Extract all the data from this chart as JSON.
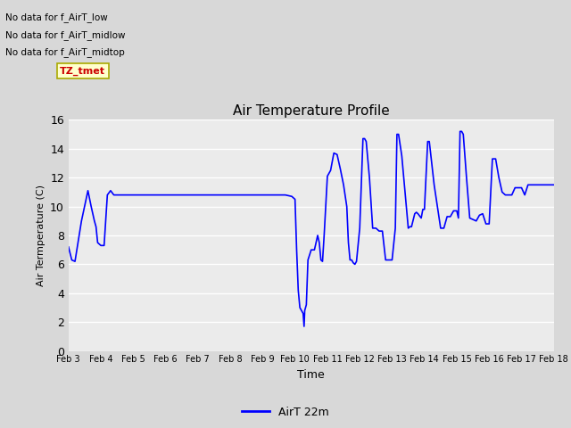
{
  "title": "Air Temperature Profile",
  "ylabel": "Air Termperature (C)",
  "xlabel": "Time",
  "ylim": [
    0,
    16
  ],
  "yticks": [
    0,
    2,
    4,
    6,
    8,
    10,
    12,
    14,
    16
  ],
  "line_color": "blue",
  "line_label": "AirT 22m",
  "fig_bg_color": "#d8d8d8",
  "plot_bg_color": "#ebebeb",
  "no_data_texts": [
    "No data for f_AirT_low",
    "No data for f_AirT_midlow",
    "No data for f_AirT_midtop"
  ],
  "tz_label": "TZ_tmet",
  "tz_color": "#cc0000",
  "tz_bg": "#ffffcc",
  "tz_edge": "#aaaa00",
  "x_labels": [
    "Feb 3",
    "Feb 4",
    "Feb 5",
    "Feb 6",
    "Feb 7",
    "Feb 8",
    "Feb 9",
    "Feb 10",
    "Feb 11",
    "Feb 12",
    "Feb 13",
    "Feb 14",
    "Feb 15",
    "Feb 16",
    "Feb 17",
    "Feb 18"
  ],
  "x_values": [
    3,
    4,
    5,
    6,
    7,
    8,
    9,
    10,
    11,
    12,
    13,
    14,
    15,
    16,
    17,
    18
  ],
  "temperature_data": [
    [
      3.0,
      7.2
    ],
    [
      3.1,
      6.3
    ],
    [
      3.2,
      6.2
    ],
    [
      3.4,
      9.0
    ],
    [
      3.6,
      11.1
    ],
    [
      3.7,
      10.0
    ],
    [
      3.8,
      9.0
    ],
    [
      3.85,
      8.6
    ],
    [
      3.9,
      7.5
    ],
    [
      4.0,
      7.3
    ],
    [
      4.1,
      7.3
    ],
    [
      4.2,
      10.8
    ],
    [
      4.3,
      11.1
    ],
    [
      4.4,
      10.8
    ],
    [
      4.5,
      10.8
    ],
    [
      5.0,
      10.8
    ],
    [
      6.0,
      10.8
    ],
    [
      7.0,
      10.8
    ],
    [
      8.0,
      10.8
    ],
    [
      8.5,
      10.8
    ],
    [
      9.0,
      10.8
    ],
    [
      9.5,
      10.8
    ],
    [
      9.7,
      10.8
    ],
    [
      9.9,
      10.7
    ],
    [
      10.0,
      10.5
    ],
    [
      10.05,
      7.0
    ],
    [
      10.1,
      4.2
    ],
    [
      10.15,
      3.0
    ],
    [
      10.2,
      2.8
    ],
    [
      10.25,
      2.6
    ],
    [
      10.28,
      1.7
    ],
    [
      10.3,
      2.8
    ],
    [
      10.35,
      3.2
    ],
    [
      10.4,
      6.3
    ],
    [
      10.5,
      7.0
    ],
    [
      10.6,
      7.0
    ],
    [
      10.7,
      8.0
    ],
    [
      10.75,
      7.5
    ],
    [
      10.8,
      6.3
    ],
    [
      10.85,
      6.2
    ],
    [
      10.9,
      8.0
    ],
    [
      11.0,
      12.1
    ],
    [
      11.1,
      12.5
    ],
    [
      11.2,
      13.7
    ],
    [
      11.3,
      13.6
    ],
    [
      11.4,
      12.6
    ],
    [
      11.5,
      11.5
    ],
    [
      11.6,
      10.0
    ],
    [
      11.65,
      7.5
    ],
    [
      11.7,
      6.3
    ],
    [
      11.75,
      6.3
    ],
    [
      11.8,
      6.1
    ],
    [
      11.85,
      6.0
    ],
    [
      11.9,
      6.2
    ],
    [
      12.0,
      8.5
    ],
    [
      12.1,
      14.7
    ],
    [
      12.15,
      14.7
    ],
    [
      12.2,
      14.5
    ],
    [
      12.3,
      12.0
    ],
    [
      12.4,
      8.5
    ],
    [
      12.5,
      8.5
    ],
    [
      12.6,
      8.3
    ],
    [
      12.7,
      8.3
    ],
    [
      12.8,
      6.3
    ],
    [
      12.9,
      6.3
    ],
    [
      13.0,
      6.3
    ],
    [
      13.1,
      8.5
    ],
    [
      13.15,
      15.0
    ],
    [
      13.2,
      15.0
    ],
    [
      13.3,
      13.5
    ],
    [
      13.4,
      11.0
    ],
    [
      13.5,
      8.5
    ],
    [
      13.55,
      8.6
    ],
    [
      13.6,
      8.6
    ],
    [
      13.7,
      9.5
    ],
    [
      13.75,
      9.6
    ],
    [
      13.8,
      9.5
    ],
    [
      13.9,
      9.2
    ],
    [
      13.95,
      9.8
    ],
    [
      14.0,
      9.8
    ],
    [
      14.1,
      14.5
    ],
    [
      14.15,
      14.5
    ],
    [
      14.2,
      13.5
    ],
    [
      14.3,
      11.5
    ],
    [
      14.5,
      8.5
    ],
    [
      14.6,
      8.5
    ],
    [
      14.7,
      9.3
    ],
    [
      14.8,
      9.3
    ],
    [
      14.9,
      9.7
    ],
    [
      15.0,
      9.7
    ],
    [
      15.05,
      9.2
    ],
    [
      15.1,
      15.2
    ],
    [
      15.15,
      15.2
    ],
    [
      15.2,
      15.0
    ],
    [
      15.3,
      12.0
    ],
    [
      15.4,
      9.2
    ],
    [
      15.5,
      9.1
    ],
    [
      15.6,
      9.0
    ],
    [
      15.7,
      9.4
    ],
    [
      15.8,
      9.5
    ],
    [
      15.9,
      8.8
    ],
    [
      15.95,
      8.8
    ],
    [
      16.0,
      8.8
    ],
    [
      16.1,
      13.3
    ],
    [
      16.2,
      13.3
    ],
    [
      16.3,
      12.0
    ],
    [
      16.4,
      11.0
    ],
    [
      16.5,
      10.8
    ],
    [
      16.7,
      10.8
    ],
    [
      16.8,
      11.3
    ],
    [
      17.0,
      11.3
    ],
    [
      17.1,
      10.8
    ],
    [
      17.2,
      11.5
    ],
    [
      17.3,
      11.5
    ],
    [
      17.5,
      11.5
    ],
    [
      17.8,
      11.5
    ],
    [
      17.9,
      11.5
    ],
    [
      18.0,
      11.5
    ]
  ]
}
